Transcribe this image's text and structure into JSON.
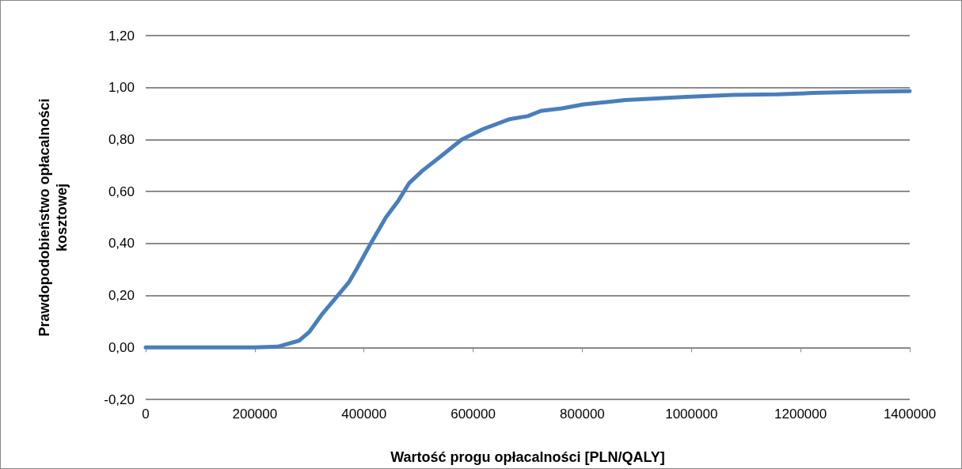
{
  "chart_data": {
    "type": "line",
    "xlabel": "Wartość progu opłacalności [PLN/QALY]",
    "ylabel": "Prawdopodobieństwo opłacalności\nkosztowej",
    "series": [
      {
        "color": "#4a7ebb",
        "x": [
          0,
          100000,
          200000,
          242000,
          281000,
          300000,
          324000,
          348000,
          372000,
          386000,
          411000,
          440000,
          463000,
          483000,
          507000,
          541000,
          579000,
          618000,
          666000,
          700000,
          724000,
          763000,
          802000,
          879000,
          990000,
          1077000,
          1158000,
          1222000,
          1318000,
          1400000
        ],
        "values": [
          0,
          0,
          0,
          0.003,
          0.026,
          0.06,
          0.13,
          0.19,
          0.25,
          0.3,
          0.395,
          0.5,
          0.565,
          0.633,
          0.68,
          0.736,
          0.8,
          0.84,
          0.878,
          0.89,
          0.91,
          0.92,
          0.935,
          0.952,
          0.964,
          0.972,
          0.974,
          0.979,
          0.984,
          0.986
        ]
      }
    ],
    "xlim": [
      0,
      1400000
    ],
    "xticks": [
      0,
      200000,
      400000,
      600000,
      800000,
      1000000,
      1200000,
      1400000
    ],
    "ylim": [
      -0.2,
      1.2
    ],
    "yticks": [
      {
        "value": -0.2,
        "label": "-0,20"
      },
      {
        "value": 0,
        "label": "0,00"
      },
      {
        "value": 0.2,
        "label": "0,20"
      },
      {
        "value": 0.4,
        "label": "0,40"
      },
      {
        "value": 0.6,
        "label": "0,60"
      },
      {
        "value": 0.8,
        "label": "0,80"
      },
      {
        "value": 1,
        "label": "1,00"
      },
      {
        "value": 1.2,
        "label": "1,20"
      }
    ],
    "grid": "y",
    "marker": "none",
    "line_style": "solid"
  }
}
